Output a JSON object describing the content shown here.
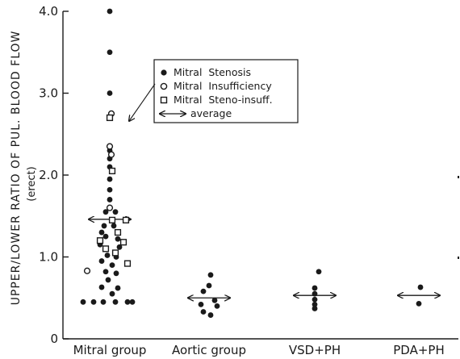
{
  "chart_data": {
    "type": "scatter",
    "ylabel": "UPPER/LOWER RATIO OF PUL. BLOOD FLOW",
    "ylabel_sub": "(erect)",
    "ylim": [
      0,
      4.0
    ],
    "y_ticks": [
      {
        "value": 0,
        "label": "0"
      },
      {
        "value": 1.0,
        "label": "1.0"
      },
      {
        "value": 2.0,
        "label": "2.0"
      },
      {
        "value": 3.0,
        "label": "3.0"
      },
      {
        "value": 4.0,
        "label": "4.0"
      }
    ],
    "categories": [
      "Mitral group",
      "Aortic group",
      "VSD+PH",
      "PDA+PH"
    ],
    "legend": {
      "position": "top-center",
      "entries": [
        {
          "marker": "filled-circle",
          "label": "Mitral  Stenosis"
        },
        {
          "marker": "open-circle",
          "label": "Mitral  Insufficiency"
        },
        {
          "marker": "open-square",
          "label": "Mitral  Steno-insuff."
        },
        {
          "marker": "double-arrow",
          "label": "average"
        }
      ]
    },
    "series": [
      {
        "name": "Mitral  Stenosis",
        "marker": "filled-circle",
        "points": [
          {
            "category": 0,
            "offset": 0,
            "y": 4.0
          },
          {
            "category": 0,
            "offset": 0,
            "y": 3.5
          },
          {
            "category": 0,
            "offset": 0,
            "y": 3.0
          },
          {
            "category": 0,
            "offset": 0,
            "y": 2.3
          },
          {
            "category": 0,
            "offset": 0,
            "y": 2.2
          },
          {
            "category": 0,
            "offset": 0,
            "y": 2.1
          },
          {
            "category": 0,
            "offset": 0,
            "y": 1.95
          },
          {
            "category": 0,
            "offset": 0,
            "y": 1.82
          },
          {
            "category": 0,
            "offset": 0,
            "y": 1.7
          },
          {
            "category": 0,
            "offset": -0.05,
            "y": 1.55
          },
          {
            "category": 0,
            "offset": 0.07,
            "y": 1.55
          },
          {
            "category": 0,
            "offset": -0.07,
            "y": 1.38
          },
          {
            "category": 0,
            "offset": 0.05,
            "y": 1.38
          },
          {
            "category": 0,
            "offset": -0.1,
            "y": 1.3
          },
          {
            "category": 0,
            "offset": 0.1,
            "y": 1.3
          },
          {
            "category": 0,
            "offset": -0.05,
            "y": 1.25
          },
          {
            "category": 0,
            "offset": 0.1,
            "y": 1.22
          },
          {
            "category": 0,
            "offset": -0.12,
            "y": 1.15
          },
          {
            "category": 0,
            "offset": 0.12,
            "y": 1.12
          },
          {
            "category": 0,
            "offset": -0.03,
            "y": 1.02
          },
          {
            "category": 0,
            "offset": 0.08,
            "y": 1.0
          },
          {
            "category": 0,
            "offset": -0.1,
            "y": 0.95
          },
          {
            "category": 0,
            "offset": 0.03,
            "y": 0.9
          },
          {
            "category": 0,
            "offset": -0.05,
            "y": 0.82
          },
          {
            "category": 0,
            "offset": 0.08,
            "y": 0.8
          },
          {
            "category": 0,
            "offset": -0.02,
            "y": 0.72
          },
          {
            "category": 0,
            "offset": -0.1,
            "y": 0.63
          },
          {
            "category": 0,
            "offset": 0.1,
            "y": 0.62
          },
          {
            "category": 0,
            "offset": 0.03,
            "y": 0.55
          },
          {
            "category": 0,
            "offset": -0.33,
            "y": 0.45
          },
          {
            "category": 0,
            "offset": -0.2,
            "y": 0.45
          },
          {
            "category": 0,
            "offset": -0.08,
            "y": 0.45
          },
          {
            "category": 0,
            "offset": 0.07,
            "y": 0.45
          },
          {
            "category": 0,
            "offset": 0.22,
            "y": 0.45
          },
          {
            "category": 0,
            "offset": 0.28,
            "y": 0.45
          },
          {
            "category": 1,
            "offset": 0.02,
            "y": 0.78
          },
          {
            "category": 1,
            "offset": 0.0,
            "y": 0.65
          },
          {
            "category": 1,
            "offset": -0.07,
            "y": 0.58
          },
          {
            "category": 1,
            "offset": 0.07,
            "y": 0.47
          },
          {
            "category": 1,
            "offset": -0.1,
            "y": 0.42
          },
          {
            "category": 1,
            "offset": 0.1,
            "y": 0.4
          },
          {
            "category": 1,
            "offset": -0.07,
            "y": 0.33
          },
          {
            "category": 1,
            "offset": 0.02,
            "y": 0.29
          },
          {
            "category": 2,
            "offset": 0.05,
            "y": 0.82
          },
          {
            "category": 2,
            "offset": 0.0,
            "y": 0.62
          },
          {
            "category": 2,
            "offset": 0.0,
            "y": 0.55
          },
          {
            "category": 2,
            "offset": 0.0,
            "y": 0.48
          },
          {
            "category": 2,
            "offset": 0.0,
            "y": 0.42
          },
          {
            "category": 2,
            "offset": 0.0,
            "y": 0.37
          },
          {
            "category": 3,
            "offset": 0.02,
            "y": 0.63
          },
          {
            "category": 3,
            "offset": 0.0,
            "y": 0.43
          }
        ]
      },
      {
        "name": "Mitral  Insufficiency",
        "marker": "open-circle",
        "points": [
          {
            "category": 0,
            "offset": 0.02,
            "y": 2.75
          },
          {
            "category": 0,
            "offset": 0.0,
            "y": 2.35
          },
          {
            "category": 0,
            "offset": 0.02,
            "y": 2.25
          },
          {
            "category": 0,
            "offset": 0.0,
            "y": 1.6
          },
          {
            "category": 0,
            "offset": -0.28,
            "y": 0.83
          }
        ]
      },
      {
        "name": "Mitral  Steno-insuff.",
        "marker": "open-square",
        "points": [
          {
            "category": 0,
            "offset": 0.0,
            "y": 2.7
          },
          {
            "category": 0,
            "offset": 0.03,
            "y": 2.05
          },
          {
            "category": 0,
            "offset": 0.03,
            "y": 1.45
          },
          {
            "category": 0,
            "offset": 0.2,
            "y": 1.45
          },
          {
            "category": 0,
            "offset": 0.1,
            "y": 1.3
          },
          {
            "category": 0,
            "offset": -0.12,
            "y": 1.2
          },
          {
            "category": 0,
            "offset": 0.17,
            "y": 1.18
          },
          {
            "category": 0,
            "offset": -0.05,
            "y": 1.1
          },
          {
            "category": 0,
            "offset": 0.07,
            "y": 1.05
          },
          {
            "category": 0,
            "offset": 0.22,
            "y": 0.92
          }
        ]
      }
    ],
    "averages": [
      {
        "category": 0,
        "y": 1.46
      },
      {
        "category": 1,
        "y": 0.5
      },
      {
        "category": 2,
        "y": 0.53
      },
      {
        "category": 3,
        "y": 0.53
      }
    ],
    "grid": false
  }
}
